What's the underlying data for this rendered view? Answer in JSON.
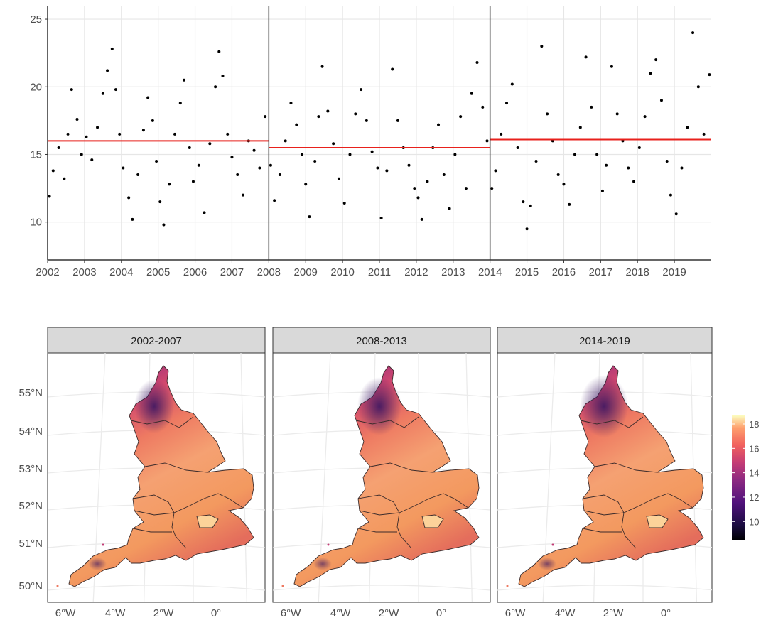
{
  "chart_data": [
    {
      "type": "scatter",
      "title": "",
      "xlabel": "",
      "ylabel": "",
      "xlim": [
        2002,
        2020
      ],
      "ylim": [
        7.2,
        26
      ],
      "x_ticks": [
        {
          "label": "2002",
          "value": 2002
        },
        {
          "label": "2003",
          "value": 2003
        },
        {
          "label": "2004",
          "value": 2004
        },
        {
          "label": "2005",
          "value": 2005
        },
        {
          "label": "2006",
          "value": 2006
        },
        {
          "label": "2007",
          "value": 2007
        },
        {
          "label": "2008",
          "value": 2008
        },
        {
          "label": "2009",
          "value": 2009
        },
        {
          "label": "2010",
          "value": 2010
        },
        {
          "label": "2011",
          "value": 2011
        },
        {
          "label": "2012",
          "value": 2012
        },
        {
          "label": "2013",
          "value": 2013
        },
        {
          "label": "2014",
          "value": 2014
        },
        {
          "label": "2015",
          "value": 2015
        },
        {
          "label": "2016",
          "value": 2016
        },
        {
          "label": "2017",
          "value": 2017
        },
        {
          "label": "2018",
          "value": 2018
        },
        {
          "label": "2019",
          "value": 2019
        }
      ],
      "y_ticks": [
        {
          "label": "10",
          "value": 10
        },
        {
          "label": "15",
          "value": 15
        },
        {
          "label": "20",
          "value": 20
        },
        {
          "label": "25",
          "value": 25
        }
      ],
      "grid": true,
      "period_breaks": [
        2008,
        2014
      ],
      "series": [
        {
          "color": "#000000",
          "points": [
            [
              2002.05,
              11.9
            ],
            [
              2002.15,
              13.8
            ],
            [
              2002.3,
              15.5
            ],
            [
              2002.45,
              13.2
            ],
            [
              2002.55,
              16.5
            ],
            [
              2002.65,
              19.8
            ],
            [
              2002.8,
              17.6
            ],
            [
              2002.92,
              15.0
            ],
            [
              2003.05,
              16.3
            ],
            [
              2003.2,
              14.6
            ],
            [
              2003.35,
              17.0
            ],
            [
              2003.5,
              19.5
            ],
            [
              2003.62,
              21.2
            ],
            [
              2003.75,
              22.8
            ],
            [
              2003.85,
              19.8
            ],
            [
              2003.95,
              16.5
            ],
            [
              2004.05,
              14.0
            ],
            [
              2004.2,
              11.8
            ],
            [
              2004.3,
              10.2
            ],
            [
              2004.45,
              13.5
            ],
            [
              2004.6,
              16.8
            ],
            [
              2004.72,
              19.2
            ],
            [
              2004.85,
              17.5
            ],
            [
              2004.95,
              14.5
            ],
            [
              2005.05,
              11.5
            ],
            [
              2005.15,
              9.8
            ],
            [
              2005.3,
              12.8
            ],
            [
              2005.45,
              16.5
            ],
            [
              2005.6,
              18.8
            ],
            [
              2005.7,
              20.5
            ],
            [
              2005.85,
              15.5
            ],
            [
              2005.95,
              13.0
            ],
            [
              2006.1,
              14.2
            ],
            [
              2006.25,
              10.7
            ],
            [
              2006.4,
              15.8
            ],
            [
              2006.55,
              20.0
            ],
            [
              2006.65,
              22.6
            ],
            [
              2006.75,
              20.8
            ],
            [
              2006.88,
              16.5
            ],
            [
              2007.0,
              14.8
            ],
            [
              2007.15,
              13.5
            ],
            [
              2007.3,
              12.0
            ],
            [
              2007.45,
              16.0
            ],
            [
              2007.6,
              15.3
            ],
            [
              2007.75,
              14.0
            ],
            [
              2007.9,
              17.8
            ],
            [
              2008.05,
              14.2
            ],
            [
              2008.15,
              11.6
            ],
            [
              2008.3,
              13.5
            ],
            [
              2008.45,
              16.0
            ],
            [
              2008.6,
              18.8
            ],
            [
              2008.75,
              17.2
            ],
            [
              2008.9,
              15.0
            ],
            [
              2009.0,
              12.8
            ],
            [
              2009.1,
              10.4
            ],
            [
              2009.25,
              14.5
            ],
            [
              2009.35,
              17.8
            ],
            [
              2009.45,
              21.5
            ],
            [
              2009.6,
              18.2
            ],
            [
              2009.75,
              15.8
            ],
            [
              2009.9,
              13.2
            ],
            [
              2010.05,
              11.4
            ],
            [
              2010.2,
              15.0
            ],
            [
              2010.35,
              18.0
            ],
            [
              2010.5,
              19.8
            ],
            [
              2010.65,
              17.5
            ],
            [
              2010.8,
              15.2
            ],
            [
              2010.95,
              14.0
            ],
            [
              2011.05,
              10.3
            ],
            [
              2011.2,
              13.8
            ],
            [
              2011.35,
              21.3
            ],
            [
              2011.5,
              17.5
            ],
            [
              2011.65,
              15.5
            ],
            [
              2011.8,
              14.2
            ],
            [
              2011.95,
              12.5
            ],
            [
              2012.05,
              11.8
            ],
            [
              2012.15,
              10.2
            ],
            [
              2012.3,
              13.0
            ],
            [
              2012.45,
              15.5
            ],
            [
              2012.6,
              17.2
            ],
            [
              2012.75,
              13.5
            ],
            [
              2012.9,
              11.0
            ],
            [
              2013.05,
              15.0
            ],
            [
              2013.2,
              17.8
            ],
            [
              2013.35,
              12.5
            ],
            [
              2013.5,
              19.5
            ],
            [
              2013.65,
              21.8
            ],
            [
              2013.8,
              18.5
            ],
            [
              2013.92,
              16.0
            ],
            [
              2014.05,
              12.5
            ],
            [
              2014.15,
              13.8
            ],
            [
              2014.3,
              16.5
            ],
            [
              2014.45,
              18.8
            ],
            [
              2014.6,
              20.2
            ],
            [
              2014.75,
              15.5
            ],
            [
              2014.9,
              11.5
            ],
            [
              2015.0,
              9.5
            ],
            [
              2015.1,
              11.2
            ],
            [
              2015.25,
              14.5
            ],
            [
              2015.4,
              23.0
            ],
            [
              2015.55,
              18.0
            ],
            [
              2015.7,
              16.0
            ],
            [
              2015.85,
              13.5
            ],
            [
              2016.0,
              12.8
            ],
            [
              2016.15,
              11.3
            ],
            [
              2016.3,
              15.0
            ],
            [
              2016.45,
              17.0
            ],
            [
              2016.6,
              22.2
            ],
            [
              2016.75,
              18.5
            ],
            [
              2016.9,
              15.0
            ],
            [
              2017.05,
              12.3
            ],
            [
              2017.15,
              14.2
            ],
            [
              2017.3,
              21.5
            ],
            [
              2017.45,
              18.0
            ],
            [
              2017.6,
              16.0
            ],
            [
              2017.75,
              14.0
            ],
            [
              2017.9,
              13.0
            ],
            [
              2018.05,
              15.5
            ],
            [
              2018.2,
              17.8
            ],
            [
              2018.35,
              21.0
            ],
            [
              2018.5,
              22.0
            ],
            [
              2018.65,
              19.0
            ],
            [
              2018.8,
              14.5
            ],
            [
              2018.9,
              12.0
            ],
            [
              2019.05,
              10.6
            ],
            [
              2019.2,
              14.0
            ],
            [
              2019.35,
              17.0
            ],
            [
              2019.5,
              24.0
            ],
            [
              2019.65,
              20.0
            ],
            [
              2019.8,
              16.5
            ],
            [
              2019.95,
              20.9
            ]
          ]
        },
        {
          "type": "step",
          "color": "#e8211c",
          "segments": [
            [
              2002,
              2008,
              16.0
            ],
            [
              2008,
              2014,
              15.5
            ],
            [
              2014,
              2020,
              16.1
            ]
          ]
        }
      ]
    },
    {
      "type": "heatmap",
      "panels": [
        {
          "title": "2002-2007"
        },
        {
          "title": "2008-2013"
        },
        {
          "title": "2014-2019"
        }
      ],
      "lat_ticks": [
        "55°N",
        "54°N",
        "53°N",
        "52°N",
        "51°N",
        "50°N"
      ],
      "lon_ticks": [
        "6°W",
        "4°W",
        "2°W",
        "0°"
      ],
      "legend": {
        "ticks": [
          "18",
          "16",
          "14",
          "12",
          "10"
        ],
        "range": [
          8.5,
          18.7
        ]
      },
      "colors": {
        "low": "#1b0c41",
        "mid_low": "#7b2382",
        "mid": "#c23b75",
        "mid_high": "#ef6a5a",
        "high": "#fcbf86",
        "top": "#fcfdbf",
        "panel_strip": "#d9d9d9",
        "grid": "#ebebeb"
      }
    }
  ]
}
